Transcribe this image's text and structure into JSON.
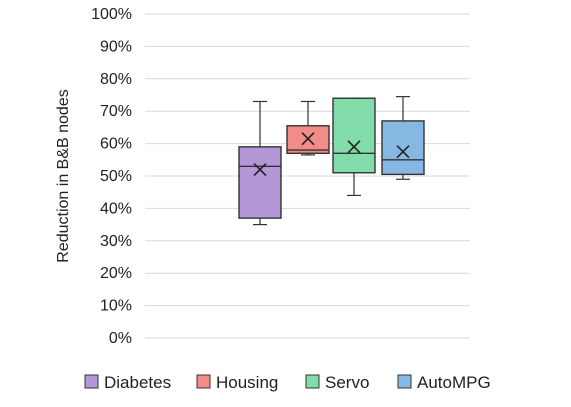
{
  "chart_data": {
    "type": "box",
    "ylabel": "Reduction in B&B nodes",
    "y_ticks": [
      "0%",
      "10%",
      "20%",
      "30%",
      "40%",
      "50%",
      "60%",
      "70%",
      "80%",
      "90%",
      "100%"
    ],
    "ylim": [
      0,
      100
    ],
    "grid": true,
    "legend_position": "bottom",
    "series": [
      {
        "name": "Diabetes",
        "color": "#b497d6",
        "min": 35,
        "q1": 37,
        "median": 53,
        "q3": 59,
        "max": 73,
        "mean": 52
      },
      {
        "name": "Housing",
        "color": "#f48b8b",
        "min": 56.5,
        "q1": 57,
        "median": 58,
        "q3": 65.5,
        "max": 73,
        "mean": 61.5
      },
      {
        "name": "Servo",
        "color": "#82dcaa",
        "min": 44,
        "q1": 51,
        "median": 57,
        "q3": 74,
        "max": 74,
        "mean": 59
      },
      {
        "name": "AutoMPG",
        "color": "#86b8e4",
        "min": 49,
        "q1": 50.5,
        "median": 55,
        "q3": 67,
        "max": 74.5,
        "mean": 57.5
      }
    ]
  }
}
